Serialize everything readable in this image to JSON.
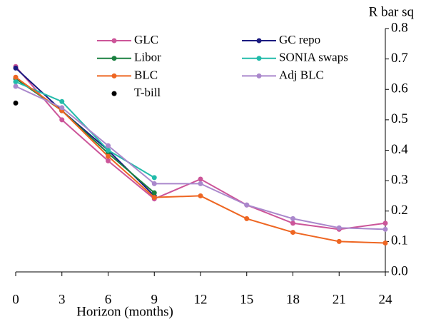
{
  "chart_data": {
    "type": "line",
    "x_label": "Horizon (months)",
    "y_label": "R bar sq",
    "x": [
      0,
      3,
      6,
      9,
      12,
      15,
      18,
      21,
      24
    ],
    "xlim": [
      0,
      24
    ],
    "xticks": [
      0,
      3,
      6,
      9,
      12,
      15,
      18,
      21,
      24
    ],
    "ylim": [
      0,
      0.8
    ],
    "yticks": [
      {
        "value": 0,
        "label": "0.0"
      },
      0.1,
      0.2,
      0.3,
      0.4,
      0.5,
      0.6,
      0.7,
      0.8
    ],
    "series": [
      {
        "name": "GLC",
        "color": "#cc5599",
        "values": [
          0.675,
          0.5,
          0.365,
          0.24,
          0.305,
          0.22,
          0.16,
          0.14,
          0.16
        ]
      },
      {
        "name": "GC repo",
        "color": "#1a1a80",
        "values": [
          0.67,
          0.53,
          0.4,
          0.25,
          null,
          null,
          null,
          null,
          null
        ]
      },
      {
        "name": "Libor",
        "color": "#1a8040",
        "values": [
          0.635,
          0.53,
          0.39,
          0.26,
          null,
          null,
          null,
          null,
          null
        ]
      },
      {
        "name": "SONIA swaps",
        "color": "#22bbaa",
        "values": [
          0.625,
          0.56,
          0.4,
          0.31,
          null,
          null,
          null,
          null,
          null
        ]
      },
      {
        "name": "BLC",
        "color": "#ee6622",
        "values": [
          0.64,
          0.53,
          0.38,
          0.245,
          0.25,
          0.175,
          0.13,
          0.1,
          0.095
        ]
      },
      {
        "name": "Adj BLC",
        "color": "#aa88cc",
        "values": [
          0.61,
          0.54,
          0.415,
          0.29,
          0.29,
          0.22,
          0.175,
          0.145,
          0.14
        ]
      },
      {
        "name": "T-bill",
        "color": "#000000",
        "values": [
          0.555,
          null,
          null,
          null,
          null,
          null,
          null,
          null,
          null
        ]
      }
    ]
  }
}
